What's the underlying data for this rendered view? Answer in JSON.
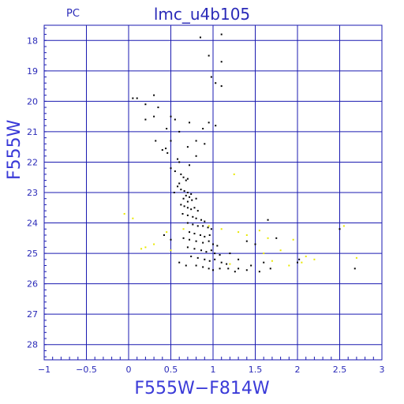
{
  "chart_data": {
    "type": "scatter",
    "title": "lmc_u4b105",
    "subtitle": "PC",
    "xlabel": "F555W−F814W",
    "ylabel": "F555W",
    "xlim": [
      -1,
      3
    ],
    "ylim": [
      28.5,
      17.5
    ],
    "y_inverted": true,
    "grid": true,
    "x_ticks": [
      "−1",
      "−0.5",
      "0",
      "0.5",
      "1",
      "1.5",
      "2",
      "2.5",
      "3"
    ],
    "y_ticks": [
      "18",
      "19",
      "20",
      "21",
      "22",
      "23",
      "24",
      "25",
      "26",
      "27",
      "28"
    ],
    "colors": {
      "grid": "#1a1ab0",
      "axis_text": "#2a2ab8",
      "series_black": "#000000",
      "series_yellow": "#e8e800"
    },
    "series": [
      {
        "color": "black",
        "points": [
          [
            0.85,
            17.9
          ],
          [
            1.1,
            17.8
          ],
          [
            0.95,
            18.5
          ],
          [
            1.1,
            18.7
          ],
          [
            0.98,
            19.2
          ],
          [
            1.03,
            19.4
          ],
          [
            1.1,
            19.5
          ],
          [
            0.05,
            19.9
          ],
          [
            0.1,
            19.9
          ],
          [
            0.3,
            19.8
          ],
          [
            0.2,
            20.1
          ],
          [
            0.35,
            20.2
          ],
          [
            0.3,
            20.5
          ],
          [
            0.2,
            20.6
          ],
          [
            0.5,
            20.5
          ],
          [
            0.55,
            20.6
          ],
          [
            0.72,
            20.7
          ],
          [
            0.95,
            20.7
          ],
          [
            1.03,
            20.8
          ],
          [
            0.88,
            20.9
          ],
          [
            0.45,
            20.9
          ],
          [
            0.6,
            21.0
          ],
          [
            0.32,
            21.3
          ],
          [
            0.5,
            21.3
          ],
          [
            0.8,
            21.3
          ],
          [
            0.7,
            21.5
          ],
          [
            0.9,
            21.4
          ],
          [
            0.4,
            21.6
          ],
          [
            0.44,
            21.55
          ],
          [
            0.46,
            21.7
          ],
          [
            0.8,
            21.8
          ],
          [
            0.58,
            21.9
          ],
          [
            0.6,
            22.0
          ],
          [
            0.72,
            22.1
          ],
          [
            0.5,
            22.2
          ],
          [
            0.55,
            22.3
          ],
          [
            0.62,
            22.4
          ],
          [
            0.65,
            22.5
          ],
          [
            0.68,
            22.6
          ],
          [
            0.7,
            22.55
          ],
          [
            0.6,
            22.7
          ],
          [
            0.58,
            22.8
          ],
          [
            0.62,
            22.9
          ],
          [
            0.66,
            22.95
          ],
          [
            0.7,
            23.0
          ],
          [
            0.74,
            23.05
          ],
          [
            0.68,
            23.1
          ],
          [
            0.72,
            23.15
          ],
          [
            0.54,
            23.0
          ],
          [
            0.65,
            23.2
          ],
          [
            0.7,
            23.3
          ],
          [
            0.75,
            23.25
          ],
          [
            0.8,
            23.2
          ],
          [
            0.62,
            23.4
          ],
          [
            0.66,
            23.45
          ],
          [
            0.7,
            23.5
          ],
          [
            0.74,
            23.55
          ],
          [
            0.78,
            23.5
          ],
          [
            0.82,
            23.6
          ],
          [
            0.64,
            23.7
          ],
          [
            0.7,
            23.75
          ],
          [
            0.76,
            23.8
          ],
          [
            0.8,
            23.85
          ],
          [
            0.86,
            23.9
          ],
          [
            0.9,
            23.95
          ],
          [
            0.7,
            24.0
          ],
          [
            0.76,
            24.05
          ],
          [
            0.82,
            24.1
          ],
          [
            0.88,
            24.1
          ],
          [
            0.94,
            24.15
          ],
          [
            0.98,
            24.2
          ],
          [
            0.72,
            24.3
          ],
          [
            0.78,
            24.35
          ],
          [
            0.85,
            24.4
          ],
          [
            0.9,
            24.45
          ],
          [
            0.96,
            24.4
          ],
          [
            0.65,
            24.5
          ],
          [
            0.72,
            24.55
          ],
          [
            0.8,
            24.6
          ],
          [
            0.88,
            24.65
          ],
          [
            0.95,
            24.6
          ],
          [
            1.0,
            24.7
          ],
          [
            1.05,
            24.75
          ],
          [
            0.7,
            24.8
          ],
          [
            0.78,
            24.85
          ],
          [
            0.86,
            24.9
          ],
          [
            0.92,
            24.95
          ],
          [
            0.98,
            24.9
          ],
          [
            1.02,
            25.0
          ],
          [
            1.08,
            25.05
          ],
          [
            0.74,
            25.1
          ],
          [
            0.82,
            25.15
          ],
          [
            0.9,
            25.2
          ],
          [
            0.96,
            25.25
          ],
          [
            1.02,
            25.2
          ],
          [
            1.1,
            25.3
          ],
          [
            1.16,
            25.35
          ],
          [
            0.8,
            25.4
          ],
          [
            0.88,
            25.45
          ],
          [
            0.95,
            25.5
          ],
          [
            1.0,
            25.55
          ],
          [
            1.08,
            25.5
          ],
          [
            1.18,
            25.5
          ],
          [
            1.26,
            25.6
          ],
          [
            0.6,
            25.3
          ],
          [
            0.68,
            25.4
          ],
          [
            1.3,
            25.5
          ],
          [
            1.4,
            25.55
          ],
          [
            1.55,
            25.6
          ],
          [
            1.2,
            25.0
          ],
          [
            1.3,
            25.2
          ],
          [
            1.45,
            25.4
          ],
          [
            0.42,
            24.4
          ],
          [
            0.5,
            24.55
          ],
          [
            1.65,
            23.9
          ],
          [
            1.75,
            24.5
          ],
          [
            1.6,
            25.3
          ],
          [
            1.68,
            25.5
          ],
          [
            2.0,
            25.3
          ],
          [
            2.02,
            25.2
          ],
          [
            2.5,
            24.2
          ],
          [
            2.68,
            25.5
          ],
          [
            1.4,
            24.6
          ],
          [
            1.5,
            24.7
          ]
        ]
      },
      {
        "color": "yellow",
        "points": [
          [
            -0.05,
            23.7
          ],
          [
            0.05,
            23.85
          ],
          [
            0.2,
            24.8
          ],
          [
            0.3,
            24.7
          ],
          [
            0.5,
            24.9
          ],
          [
            0.45,
            24.3
          ],
          [
            0.65,
            24.2
          ],
          [
            1.1,
            24.2
          ],
          [
            1.25,
            22.4
          ],
          [
            1.3,
            24.3
          ],
          [
            1.4,
            24.4
          ],
          [
            1.55,
            24.25
          ],
          [
            1.65,
            24.5
          ],
          [
            1.8,
            24.9
          ],
          [
            1.95,
            24.55
          ],
          [
            1.7,
            25.25
          ],
          [
            1.9,
            25.4
          ],
          [
            2.1,
            25.1
          ],
          [
            2.2,
            25.2
          ],
          [
            2.55,
            24.1
          ],
          [
            2.7,
            25.15
          ],
          [
            1.6,
            25.0
          ],
          [
            0.15,
            24.85
          ],
          [
            0.95,
            24.1
          ],
          [
            1.2,
            25.35
          ],
          [
            2.05,
            25.3
          ]
        ]
      }
    ]
  }
}
